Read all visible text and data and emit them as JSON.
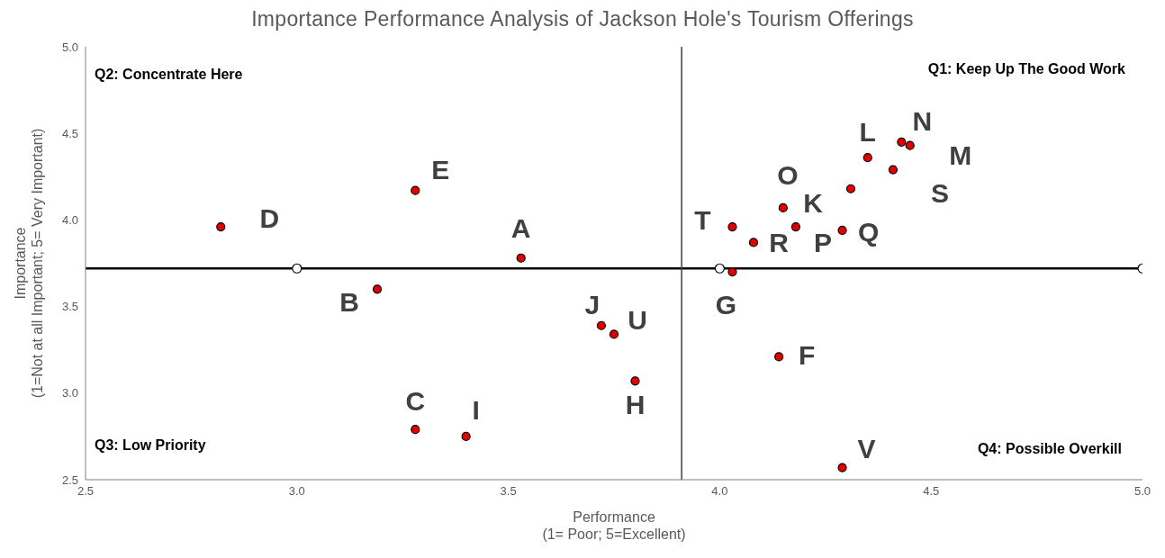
{
  "chart_data": {
    "type": "scatter",
    "title": "Importance Performance Analysis of Jackson Hole's Tourism Offerings",
    "xlabel": "Performance\n(1= Poor; 5=Excellent)",
    "ylabel": "Importance\n(1=Not at all Important; 5= Very Important)",
    "series": [
      {
        "color": "#e00000",
        "x": [
          3.53,
          3.19,
          3.28,
          2.82,
          3.28,
          4.14,
          4.03,
          3.8,
          3.4,
          3.72,
          4.31,
          4.35,
          4.45,
          4.43,
          4.15,
          4.18,
          4.29,
          4.08,
          4.41,
          4.03,
          3.75,
          4.29
        ],
        "values": [
          3.78,
          3.6,
          2.79,
          3.96,
          4.17,
          3.21,
          3.7,
          3.07,
          2.75,
          3.39,
          4.18,
          4.36,
          4.43,
          4.45,
          4.07,
          3.96,
          3.94,
          3.87,
          4.29,
          3.96,
          3.34,
          2.57
        ],
        "value_labels": [
          "A",
          "B",
          "C",
          "D",
          "E",
          "F",
          "G",
          "H",
          "I",
          "J",
          "K",
          "L",
          "M",
          "N",
          "O",
          "P",
          "Q",
          "R",
          "S",
          "T",
          "U",
          "V"
        ]
      },
      {
        "color": "#000000",
        "x": [
          3.0,
          4.0,
          5.0
        ],
        "values": [
          3.72,
          3.72,
          3.72
        ]
      }
    ],
    "ref_lines": [
      {
        "axis": "y",
        "value": 3.72,
        "color": "#000000"
      },
      {
        "axis": "x",
        "value": 3.91,
        "color": "#404040"
      }
    ],
    "annotations": [
      "Q2: Concentrate Here",
      "Q1: Keep Up The Good Work",
      "Q3: Low Priority",
      "Q4: Possible Overkill"
    ],
    "xlim": [
      2.5,
      5.0
    ],
    "xticks": [
      {
        "value": 2.5,
        "label": "2.5"
      },
      {
        "value": 3.0,
        "label": "3.0"
      },
      {
        "value": 3.5,
        "label": "3.5"
      },
      {
        "value": 4.0,
        "label": "4.0"
      },
      {
        "value": 4.5,
        "label": "4.5"
      },
      {
        "value": 5.0,
        "label": "5.0"
      }
    ],
    "ylim": [
      2.5,
      5.0
    ],
    "yticks": [
      {
        "value": 2.5,
        "label": "2.5"
      },
      {
        "value": 3.0,
        "label": "3.0"
      },
      {
        "value": 3.5,
        "label": "3.5"
      },
      {
        "value": 4.0,
        "label": "4.0"
      },
      {
        "value": 4.5,
        "label": "4.5"
      },
      {
        "value": 5.0,
        "label": "5.0"
      }
    ],
    "grid": false,
    "legend": false,
    "marker": "circle"
  }
}
